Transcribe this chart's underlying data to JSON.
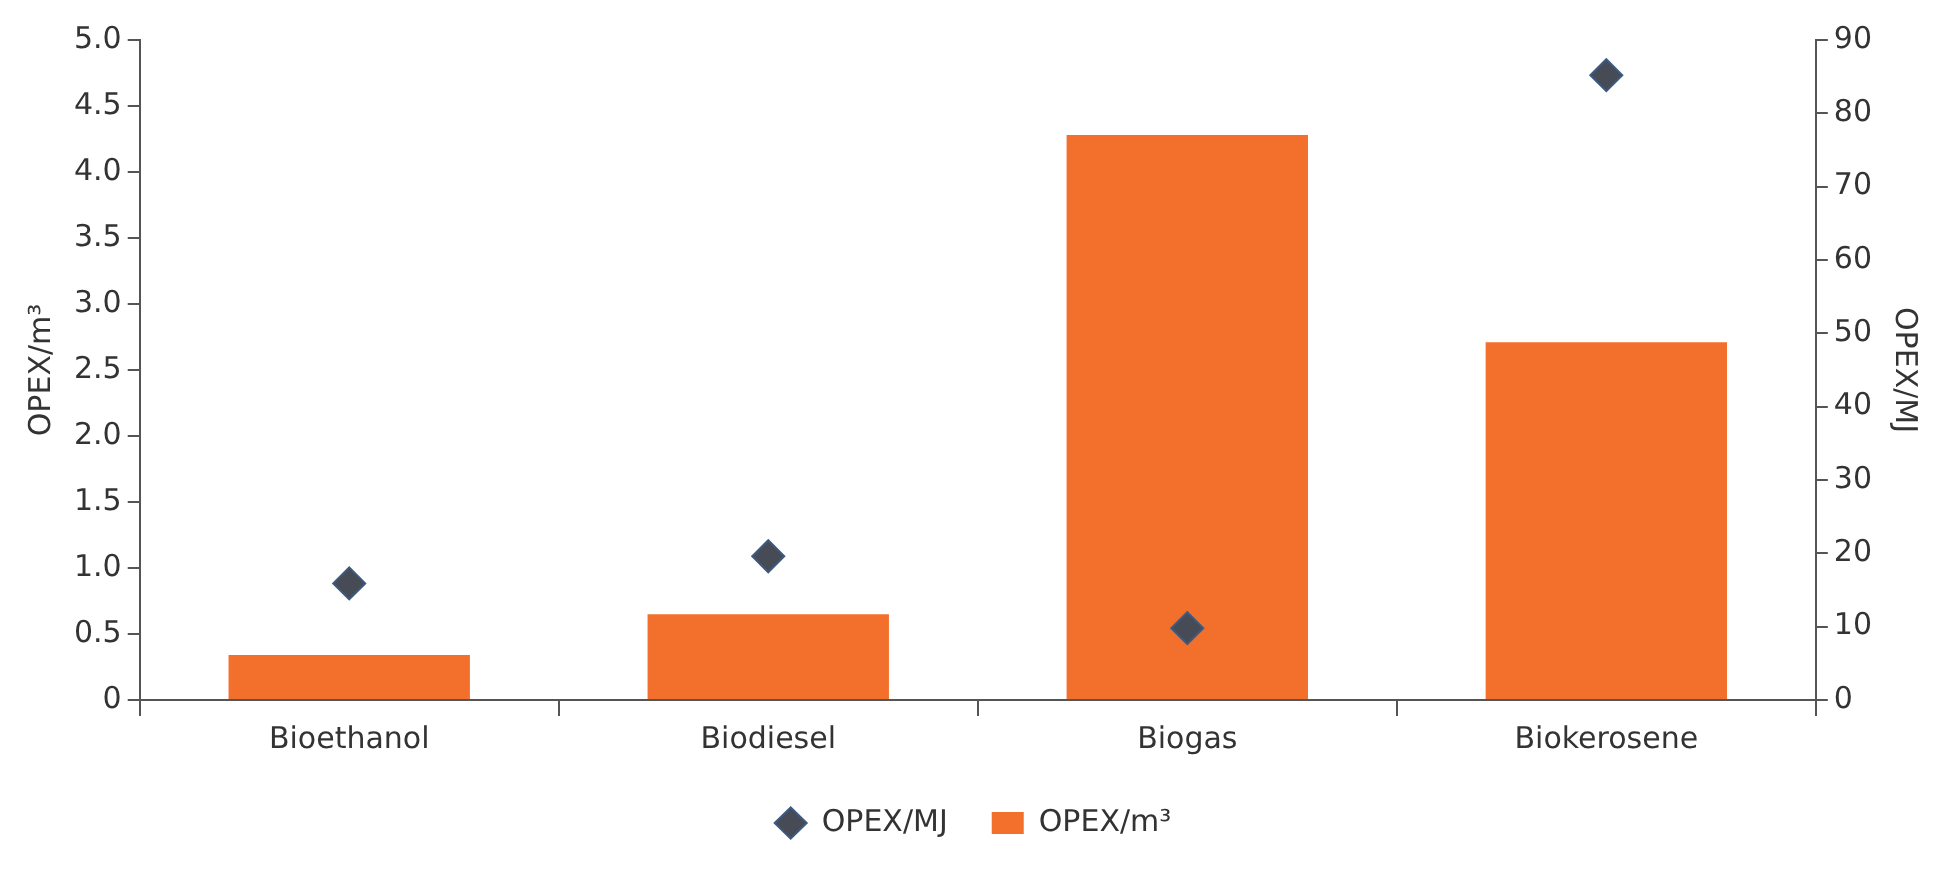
{
  "chart_data": {
    "type": "bar",
    "categories": [
      "Bioethanol",
      "Biodiesel",
      "Biogas",
      "Biokerosene"
    ],
    "series": [
      {
        "name": "OPEX/MJ",
        "type": "scatter",
        "axis": "y2",
        "marker": "diamond",
        "color": "#464b55",
        "values": [
          15.9,
          19.6,
          9.8,
          85.2
        ]
      },
      {
        "name": "OPEX/m³",
        "color": "#f26f2c",
        "values": [
          0.34,
          0.65,
          4.28,
          2.71
        ]
      }
    ],
    "ylabel": "OPEX/m³",
    "y2label": "OPEX/MJ",
    "ylim": [
      0,
      5
    ],
    "yticks": [
      0,
      0.5,
      {
        "value": 1,
        "label": "1.0"
      },
      1.5,
      {
        "value": 2,
        "label": "2.0"
      },
      2.5,
      {
        "value": 3,
        "label": "3.0"
      },
      3.5,
      {
        "value": 4,
        "label": "4.0"
      },
      4.5,
      {
        "value": 5,
        "label": "5.0"
      }
    ],
    "y2lim": [
      0,
      90
    ],
    "y2ticks": [
      0,
      10,
      20,
      30,
      40,
      50,
      60,
      70,
      80,
      90
    ],
    "grid": false,
    "legend": "bottom"
  }
}
